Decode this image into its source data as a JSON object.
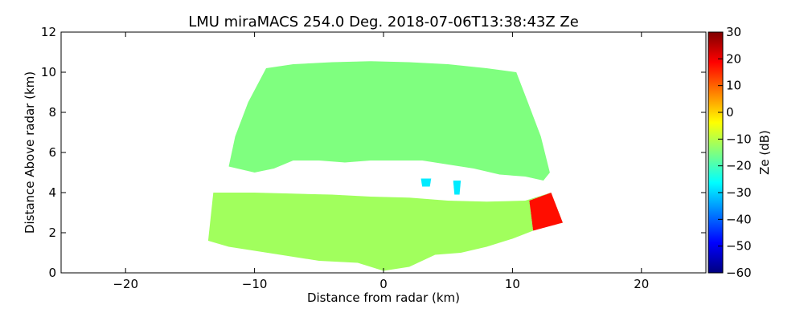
{
  "chart_data": {
    "type": "heatmap",
    "title": "LMU miraMACS 254.0 Deg. 2018-07-06T13:38:43Z  Ze",
    "xlabel": "Distance from radar (km)",
    "ylabel": "Distance Above radar  (km)",
    "xlim": [
      -25,
      25
    ],
    "ylim": [
      0,
      12
    ],
    "xticks": [
      -20,
      -10,
      0,
      10,
      20
    ],
    "xtick_labels": [
      "−20",
      "−10",
      "0",
      "10",
      "20"
    ],
    "yticks": [
      0,
      2,
      4,
      6,
      8,
      10,
      12
    ],
    "ytick_labels": [
      "0",
      "2",
      "4",
      "6",
      "8",
      "10",
      "12"
    ],
    "grid": false,
    "colorbar": {
      "label": "Ze (dB)",
      "range": [
        -60,
        30
      ],
      "ticks": [
        30,
        20,
        10,
        0,
        -10,
        -20,
        -30,
        -40,
        -50,
        -60
      ],
      "tick_labels": [
        "30",
        "20",
        "10",
        "0",
        "−10",
        "−20",
        "−30",
        "−40",
        "−50",
        "−60"
      ],
      "colormap": [
        "#00007f",
        "#0000ff",
        "#007fff",
        "#00ffff",
        "#7fff7f",
        "#ffff00",
        "#ff7f00",
        "#ff0000",
        "#7f0000"
      ]
    },
    "regions": [
      {
        "name": "upper-cloud-layer",
        "ze_db": -15,
        "outline_km": [
          [
            -9.1,
            10.2
          ],
          [
            -7,
            10.4
          ],
          [
            -4,
            10.5
          ],
          [
            -1,
            10.55
          ],
          [
            2,
            10.5
          ],
          [
            5,
            10.4
          ],
          [
            8,
            10.2
          ],
          [
            10.3,
            10.0
          ],
          [
            11.2,
            8.5
          ],
          [
            12.2,
            6.8
          ],
          [
            12.9,
            5.0
          ],
          [
            12.4,
            4.6
          ],
          [
            11,
            4.8
          ],
          [
            9,
            4.9
          ],
          [
            7,
            5.2
          ],
          [
            5,
            5.4
          ],
          [
            3,
            5.6
          ],
          [
            1,
            5.6
          ],
          [
            -1,
            5.6
          ],
          [
            -3,
            5.5
          ],
          [
            -5,
            5.6
          ],
          [
            -7,
            5.6
          ],
          [
            -8.5,
            5.2
          ],
          [
            -10,
            5.0
          ],
          [
            -12,
            5.3
          ],
          [
            -11.5,
            6.8
          ],
          [
            -10.5,
            8.5
          ]
        ]
      },
      {
        "name": "lower-cloud-layer",
        "ze_db": -12,
        "outline_km": [
          [
            -13.2,
            4.0
          ],
          [
            -10,
            4.0
          ],
          [
            -7,
            3.95
          ],
          [
            -4,
            3.9
          ],
          [
            -1,
            3.8
          ],
          [
            2,
            3.75
          ],
          [
            5,
            3.6
          ],
          [
            8,
            3.55
          ],
          [
            11,
            3.6
          ],
          [
            13,
            4.0
          ],
          [
            13.9,
            2.5
          ],
          [
            12,
            2.2
          ],
          [
            10,
            1.7
          ],
          [
            8,
            1.3
          ],
          [
            6,
            1.0
          ],
          [
            4,
            0.9
          ],
          [
            2,
            0.3
          ],
          [
            0,
            0.1
          ],
          [
            -2,
            0.5
          ],
          [
            -5,
            0.6
          ],
          [
            -8,
            0.9
          ],
          [
            -10,
            1.1
          ],
          [
            -12,
            1.3
          ],
          [
            -13.6,
            1.6
          ]
        ]
      },
      {
        "name": "high-reflectivity-core",
        "ze_db": 18,
        "outline_km": [
          [
            11.3,
            3.6
          ],
          [
            13,
            4.0
          ],
          [
            13.9,
            2.5
          ],
          [
            11.6,
            2.1
          ]
        ]
      },
      {
        "name": "small-echo-patch-1",
        "ze_db": -28,
        "outline_km": [
          [
            2.9,
            4.7
          ],
          [
            3.7,
            4.7
          ],
          [
            3.6,
            4.3
          ],
          [
            3.0,
            4.3
          ]
        ]
      },
      {
        "name": "small-echo-patch-2",
        "ze_db": -28,
        "outline_km": [
          [
            5.4,
            4.6
          ],
          [
            6.0,
            4.6
          ],
          [
            5.9,
            3.9
          ],
          [
            5.5,
            3.9
          ]
        ]
      }
    ]
  }
}
